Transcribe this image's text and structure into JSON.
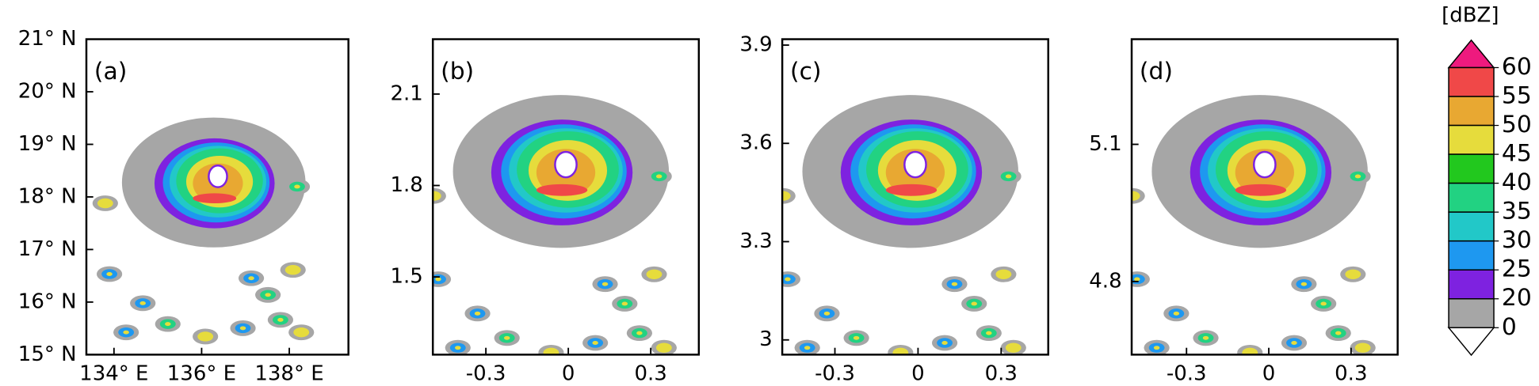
{
  "chart_data": [
    {
      "type": "heatmap",
      "label": "(a)",
      "xlim": [
        133.37,
        139.35
      ],
      "ylim": [
        15,
        21
      ],
      "xticks": [
        {
          "value": 134,
          "label": "134° E"
        },
        {
          "value": 136,
          "label": "136° E"
        },
        {
          "value": 138,
          "label": "138° E"
        }
      ],
      "yticks": [
        {
          "value": 15,
          "label": "15° N"
        },
        {
          "value": 16,
          "label": "16° N"
        },
        {
          "value": 17,
          "label": "17° N"
        },
        {
          "value": 18,
          "label": "18° N"
        },
        {
          "value": 19,
          "label": "19° N"
        },
        {
          "value": 20,
          "label": "20° N"
        },
        {
          "value": 21,
          "label": "21° N"
        }
      ]
    },
    {
      "type": "heatmap",
      "label": "(b)",
      "xlim": [
        -0.493,
        0.475
      ],
      "ylim": [
        1.245,
        2.28
      ],
      "xticks": [
        -0.3,
        0,
        0.3
      ],
      "yticks": [
        1.5,
        1.8,
        2.1
      ]
    },
    {
      "type": "heatmap",
      "label": "(c)",
      "xlim": [
        -0.49,
        0.47
      ],
      "ylim": [
        2.955,
        3.918
      ],
      "xticks": [
        -0.3,
        0,
        0.3
      ],
      "yticks": [
        3,
        3.3,
        3.6,
        3.9
      ]
    },
    {
      "type": "heatmap",
      "label": "(d)",
      "xlim": [
        -0.5,
        0.47
      ],
      "ylim": [
        4.64,
        5.33
      ],
      "xticks": [
        -0.3,
        0,
        0.3
      ],
      "yticks": [
        4.8,
        5.1
      ]
    }
  ],
  "colorbar": {
    "title": "[dBZ]",
    "levels": [
      60,
      55,
      50,
      45,
      40,
      35,
      30,
      25,
      20,
      0
    ],
    "colors": [
      "#f04848",
      "#e8a832",
      "#e6dc3c",
      "#22c81e",
      "#22d282",
      "#22c8c8",
      "#1e98f0",
      "#7e22e0",
      "#a6a6a6"
    ],
    "over_color": "#ee1a7e",
    "under_color": "#ffffff"
  }
}
